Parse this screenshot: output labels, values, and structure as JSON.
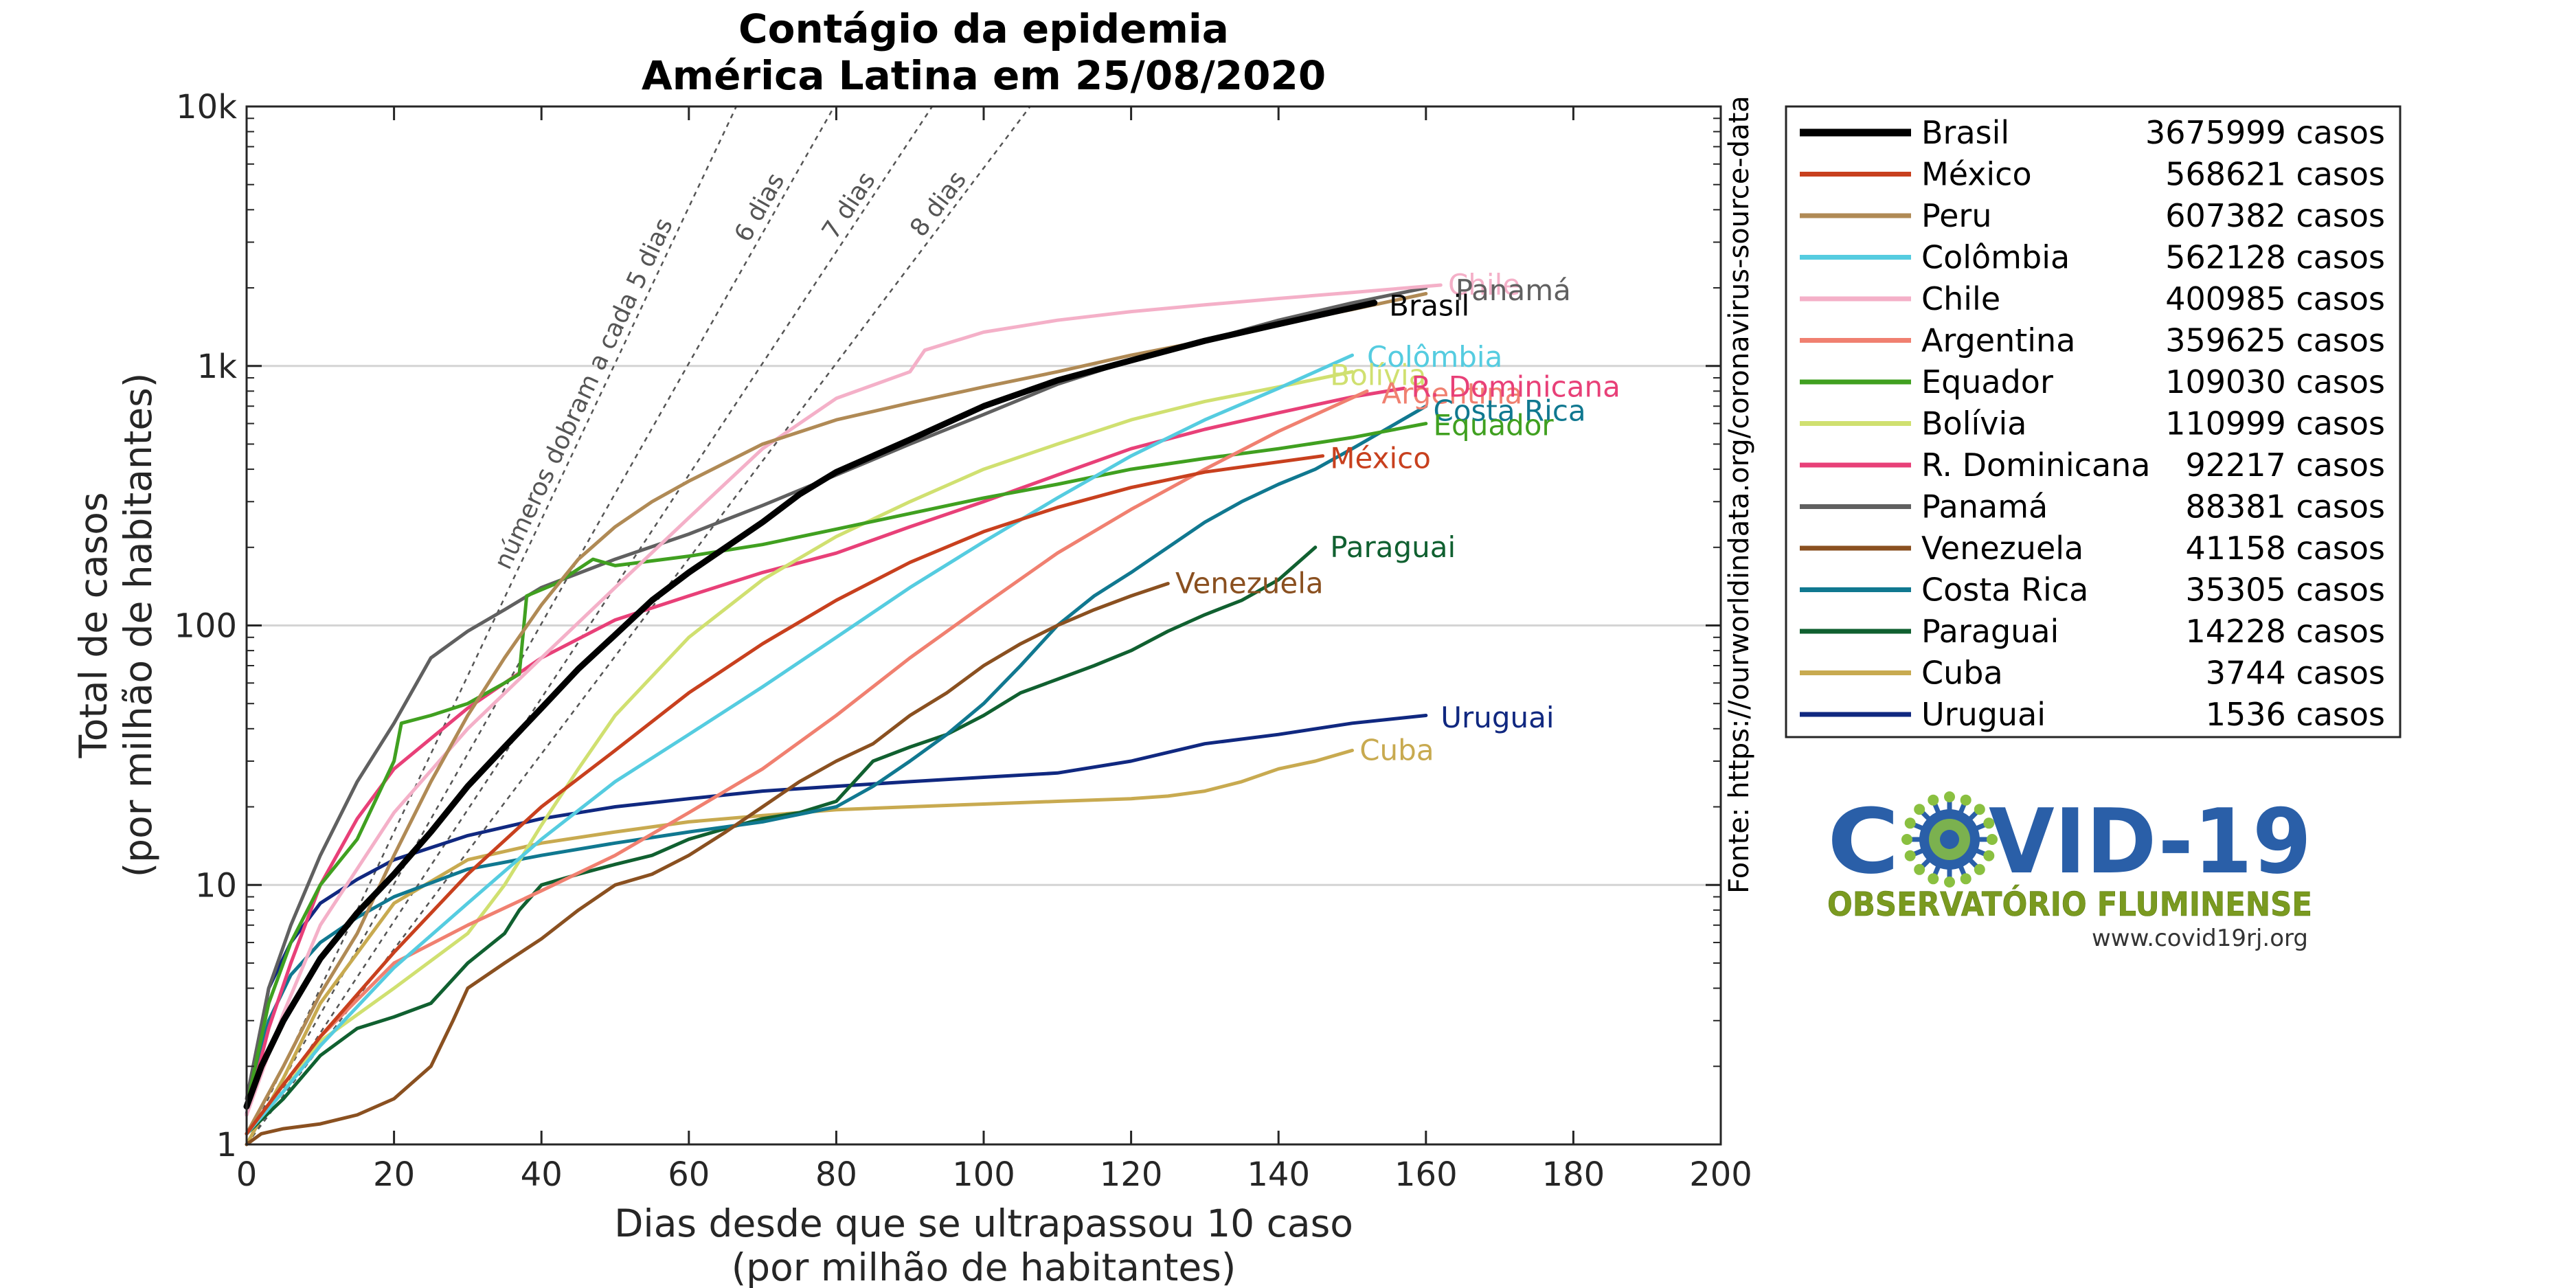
{
  "chart_data": {
    "type": "line",
    "title_lines": [
      "Contágio da epidemia",
      "América Latina em 25/08/2020"
    ],
    "xlabel_lines": [
      "Dias desde que se ultrapassou 10 caso",
      "(por milhão de habitantes)"
    ],
    "ylabel_lines": [
      "Total de casos",
      "(por milhão de habitantes)"
    ],
    "x_scale": "linear",
    "y_scale": "log",
    "xlim": [
      0,
      200
    ],
    "ylim": [
      1,
      10000
    ],
    "x_ticks": [
      0,
      20,
      40,
      60,
      80,
      100,
      120,
      140,
      160,
      180,
      200
    ],
    "x_tick_labels": [
      "0",
      "20",
      "40",
      "60",
      "80",
      "100",
      "120",
      "140",
      "160",
      "180",
      "200"
    ],
    "y_ticks": [
      1,
      10,
      100,
      1000,
      10000
    ],
    "y_tick_labels": [
      "1",
      "10",
      "100",
      "1k",
      "10k"
    ],
    "grid": "horizontal at 10, 100, 1k",
    "legend_placement": "outside right, top",
    "source_note": "Fonte: https://ourworldindata.org/coronavirus-source-data",
    "reference_lines": [
      {
        "label": "números dobram a cada 5 dias",
        "doubling_days": 5
      },
      {
        "label": "6 dias",
        "doubling_days": 6
      },
      {
        "label": "7 dias",
        "doubling_days": 7
      },
      {
        "label": "8 dias",
        "doubling_days": 8
      }
    ],
    "series": [
      {
        "name": "Brasil",
        "legend_value": "3675999 casos",
        "color": "#000000",
        "width": 9,
        "x": [
          0,
          2,
          5,
          10,
          15,
          20,
          25,
          30,
          35,
          40,
          45,
          50,
          55,
          60,
          65,
          70,
          75,
          80,
          90,
          100,
          110,
          120,
          130,
          140,
          153
        ],
        "y": [
          1.4,
          2.0,
          3.0,
          5.2,
          7.8,
          11,
          16,
          24,
          34,
          48,
          68,
          92,
          125,
          160,
          200,
          250,
          320,
          390,
          520,
          700,
          880,
          1050,
          1250,
          1450,
          1750
        ]
      },
      {
        "name": "México",
        "legend_value": "568621 casos",
        "color": "#c8401e",
        "width": 5,
        "x": [
          0,
          5,
          10,
          20,
          30,
          40,
          50,
          60,
          70,
          80,
          90,
          100,
          110,
          120,
          130,
          146
        ],
        "y": [
          1.1,
          1.7,
          2.6,
          5.5,
          11,
          20,
          33,
          55,
          85,
          125,
          175,
          230,
          285,
          340,
          390,
          450
        ]
      },
      {
        "name": "Peru",
        "legend_value": "607382 casos",
        "color": "#b08a55",
        "width": 5,
        "x": [
          0,
          5,
          10,
          15,
          20,
          25,
          30,
          35,
          40,
          45,
          50,
          55,
          60,
          70,
          80,
          90,
          100,
          110,
          120,
          130,
          140,
          150,
          160
        ],
        "y": [
          1.1,
          2.0,
          3.8,
          6.5,
          13,
          25,
          45,
          75,
          120,
          180,
          240,
          300,
          360,
          500,
          620,
          720,
          830,
          950,
          1100,
          1250,
          1450,
          1650,
          1900
        ]
      },
      {
        "name": "Colômbia",
        "legend_value": "562128 casos",
        "color": "#55cce0",
        "width": 5,
        "x": [
          0,
          5,
          10,
          20,
          30,
          40,
          50,
          60,
          70,
          80,
          90,
          100,
          110,
          120,
          130,
          140,
          150
        ],
        "y": [
          1.1,
          1.6,
          2.4,
          4.8,
          8.5,
          15,
          25,
          38,
          58,
          90,
          140,
          210,
          310,
          450,
          620,
          820,
          1100
        ]
      },
      {
        "name": "Chile",
        "legend_value": "400985 casos",
        "color": "#f4b0c8",
        "width": 5,
        "x": [
          0,
          5,
          10,
          20,
          30,
          40,
          50,
          60,
          70,
          80,
          90,
          92,
          100,
          110,
          120,
          130,
          140,
          150,
          162
        ],
        "y": [
          1.3,
          3.2,
          7,
          19,
          40,
          75,
          140,
          260,
          480,
          750,
          950,
          1150,
          1350,
          1500,
          1620,
          1720,
          1820,
          1920,
          2050
        ]
      },
      {
        "name": "Argentina",
        "legend_value": "359625 casos",
        "color": "#f08070",
        "width": 5,
        "x": [
          0,
          5,
          10,
          20,
          30,
          40,
          50,
          60,
          70,
          80,
          90,
          100,
          110,
          120,
          130,
          140,
          152
        ],
        "y": [
          1.1,
          1.7,
          2.6,
          5,
          7,
          9.5,
          13,
          19,
          28,
          45,
          75,
          120,
          190,
          280,
          400,
          560,
          800
        ]
      },
      {
        "name": "Equador",
        "legend_value": "109030 casos",
        "color": "#40a020",
        "width": 5,
        "x": [
          0,
          3,
          6,
          10,
          15,
          20,
          21,
          25,
          30,
          35,
          37,
          38,
          42,
          45,
          47,
          50,
          60,
          70,
          80,
          90,
          100,
          110,
          120,
          130,
          140,
          150,
          160
        ],
        "y": [
          1.4,
          3.5,
          6,
          10,
          15,
          30,
          42,
          45,
          50,
          60,
          65,
          130,
          145,
          165,
          180,
          170,
          185,
          205,
          235,
          270,
          310,
          350,
          400,
          440,
          480,
          530,
          600
        ]
      },
      {
        "name": "Bolívia",
        "legend_value": "110999 casos",
        "color": "#d0e070",
        "width": 5,
        "x": [
          0,
          5,
          10,
          20,
          30,
          35,
          40,
          45,
          50,
          60,
          70,
          80,
          90,
          100,
          110,
          120,
          130,
          140,
          150
        ],
        "y": [
          1.1,
          1.6,
          2.5,
          4,
          6.5,
          10,
          17,
          28,
          45,
          90,
          150,
          220,
          300,
          400,
          500,
          620,
          730,
          830,
          950
        ]
      },
      {
        "name": "R. Dominicana",
        "legend_value": "92217 casos",
        "color": "#e84078",
        "width": 5,
        "x": [
          0,
          3,
          6,
          10,
          15,
          20,
          30,
          40,
          50,
          60,
          70,
          80,
          90,
          100,
          110,
          120,
          130,
          140,
          150,
          157
        ],
        "y": [
          1.3,
          2.8,
          5,
          10,
          18,
          28,
          48,
          75,
          105,
          130,
          160,
          190,
          240,
          300,
          380,
          480,
          570,
          660,
          760,
          820
        ]
      },
      {
        "name": "Panamá",
        "legend_value": "88381 casos",
        "color": "#606060",
        "width": 5,
        "x": [
          0,
          3,
          6,
          10,
          15,
          20,
          25,
          30,
          35,
          40,
          50,
          60,
          70,
          80,
          90,
          100,
          110,
          120,
          130,
          140,
          150,
          160
        ],
        "y": [
          1.5,
          4,
          7,
          13,
          25,
          42,
          75,
          95,
          115,
          140,
          180,
          225,
          290,
          380,
          500,
          650,
          850,
          1050,
          1250,
          1500,
          1750,
          2000
        ]
      },
      {
        "name": "Venezuela",
        "legend_value": "41158 casos",
        "color": "#8a5020",
        "width": 5,
        "x": [
          0,
          2,
          5,
          10,
          15,
          20,
          25,
          28,
          30,
          35,
          40,
          45,
          50,
          55,
          60,
          65,
          70,
          75,
          80,
          85,
          90,
          95,
          100,
          105,
          110,
          115,
          120,
          125
        ],
        "y": [
          1.0,
          1.1,
          1.15,
          1.2,
          1.3,
          1.5,
          2.0,
          3.0,
          4.0,
          5.0,
          6.2,
          8.0,
          10,
          11,
          13,
          16,
          20,
          25,
          30,
          35,
          45,
          55,
          70,
          85,
          100,
          115,
          130,
          145
        ]
      },
      {
        "name": "Costa Rica",
        "legend_value": "35305 casos",
        "color": "#107890",
        "width": 5,
        "x": [
          0,
          3,
          6,
          10,
          15,
          20,
          30,
          40,
          50,
          60,
          70,
          80,
          85,
          90,
          95,
          100,
          105,
          110,
          115,
          120,
          125,
          130,
          135,
          140,
          145,
          150,
          160
        ],
        "y": [
          1.4,
          3,
          4.5,
          6,
          7.5,
          9,
          11.5,
          13,
          14.5,
          16,
          17.5,
          20,
          24,
          30,
          38,
          50,
          70,
          100,
          130,
          160,
          200,
          250,
          300,
          350,
          400,
          480,
          700
        ]
      },
      {
        "name": "Paraguai",
        "legend_value": "14228 casos",
        "color": "#106030",
        "width": 5,
        "x": [
          0,
          5,
          10,
          15,
          20,
          25,
          30,
          35,
          37,
          40,
          45,
          50,
          55,
          60,
          65,
          70,
          75,
          80,
          85,
          90,
          95,
          100,
          105,
          110,
          115,
          120,
          125,
          130,
          135,
          140,
          145
        ],
        "y": [
          1.1,
          1.5,
          2.2,
          2.8,
          3.1,
          3.5,
          5,
          6.5,
          8,
          10,
          11,
          12,
          13,
          15,
          16.5,
          18,
          19,
          21,
          30,
          34,
          38,
          45,
          55,
          62,
          70,
          80,
          95,
          110,
          125,
          150,
          200
        ]
      },
      {
        "name": "Cuba",
        "legend_value": "3744 casos",
        "color": "#c8aa50",
        "width": 5,
        "x": [
          0,
          5,
          10,
          20,
          30,
          40,
          50,
          60,
          70,
          80,
          90,
          100,
          110,
          120,
          125,
          130,
          135,
          140,
          145,
          150
        ],
        "y": [
          1.0,
          1.8,
          3.5,
          8.5,
          12.5,
          14.5,
          16,
          17.5,
          18.5,
          19.5,
          20,
          20.5,
          21,
          21.5,
          22,
          23,
          25,
          28,
          30,
          33
        ]
      },
      {
        "name": "Uruguai",
        "legend_value": "1536 casos",
        "color": "#102880",
        "width": 5,
        "x": [
          0,
          3,
          6,
          10,
          15,
          20,
          30,
          40,
          50,
          60,
          70,
          80,
          90,
          100,
          110,
          120,
          130,
          140,
          150,
          160
        ],
        "y": [
          1.3,
          4,
          6,
          8.5,
          10.5,
          12.5,
          15.5,
          18,
          20,
          21.5,
          23,
          24,
          25,
          26,
          27,
          30,
          35,
          38,
          42,
          45
        ]
      }
    ],
    "end_labels": [
      {
        "series": "Chile",
        "text": "Chile",
        "x": 163,
        "y": 2050
      },
      {
        "series": "Panamá",
        "text": "Panamá",
        "x": 164,
        "y": 1950
      },
      {
        "series": "Brasil",
        "text": "Brasil",
        "x": 155,
        "y": 1700
      },
      {
        "series": "Colômbia",
        "text": "Colômbia",
        "x": 152,
        "y": 1080
      },
      {
        "series": "Bolívia",
        "text": "Bolívia",
        "x": 147,
        "y": 920
      },
      {
        "series": "Argentina",
        "text": "Argentina",
        "x": 154,
        "y": 780
      },
      {
        "series": "R. Dominicana",
        "text": "R. Dominicana",
        "x": 158,
        "y": 830
      },
      {
        "series": "Costa Rica",
        "text": "Costa Rica",
        "x": 161,
        "y": 670
      },
      {
        "series": "Equador",
        "text": "Equador",
        "x": 161,
        "y": 590
      },
      {
        "series": "México",
        "text": "México",
        "x": 147,
        "y": 440
      },
      {
        "series": "Paraguai",
        "text": "Paraguai",
        "x": 147,
        "y": 200
      },
      {
        "series": "Venezuela",
        "text": "Venezuela",
        "x": 126,
        "y": 145
      },
      {
        "series": "Uruguai",
        "text": "Uruguai",
        "x": 162,
        "y": 44
      },
      {
        "series": "Cuba",
        "text": "Cuba",
        "x": 151,
        "y": 33
      }
    ]
  },
  "logo": {
    "title_left": "C",
    "title_right": "VID-19",
    "subtitle": "OBSERVATÓRIO FLUMINENSE",
    "url": "www.covid19rj.org",
    "colors": {
      "title": "#2a5fa8",
      "subtitle": "#7a9a20",
      "virus": "#2a5fa8",
      "virus_inner": "#8ac040"
    }
  }
}
